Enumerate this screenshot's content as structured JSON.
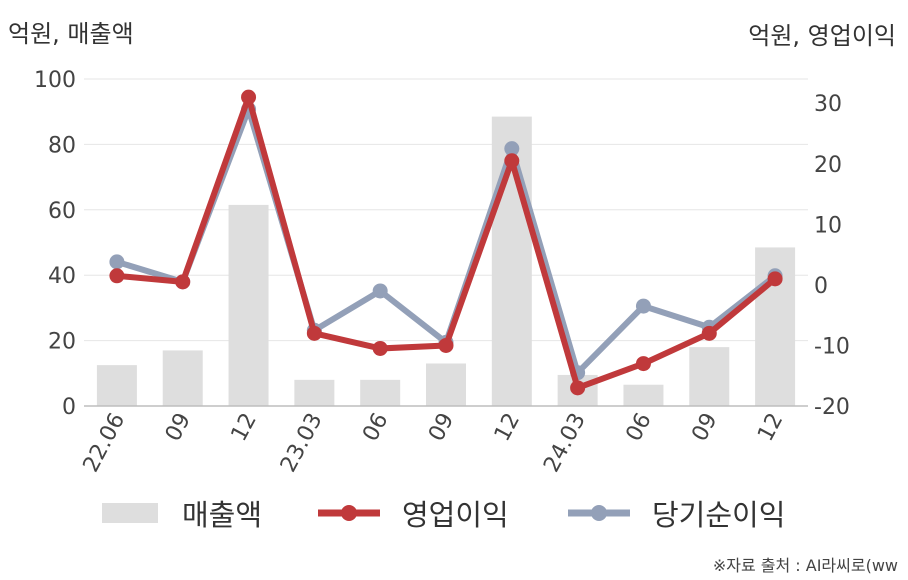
{
  "units": {
    "left": "억원, 매출액",
    "right": "억원, 영업이익"
  },
  "source": "※자료 출처 : AI라씨로(ww",
  "legend": [
    {
      "label": "매출액",
      "kind": "bar",
      "color": "#dedede"
    },
    {
      "label": "영업이익",
      "kind": "line",
      "color": "#c0393b"
    },
    {
      "label": "당기순이익",
      "kind": "line",
      "color": "#93a0b8"
    }
  ],
  "chart_data": {
    "type": "bar",
    "categories": [
      "22.06",
      "09",
      "12",
      "23.03",
      "06",
      "09",
      "12",
      "24.03",
      "06",
      "09",
      "12"
    ],
    "y_left": {
      "label": "억원, 매출액",
      "lim": [
        0,
        100
      ],
      "ticks": [
        0,
        20,
        40,
        60,
        80,
        100
      ]
    },
    "y_right": {
      "label": "억원, 영업이익",
      "lim": [
        -20,
        34
      ],
      "ticks": [
        -20,
        -10,
        0,
        10,
        20,
        30
      ]
    },
    "grid": true,
    "legend_position": "bottom",
    "series": [
      {
        "name": "매출액",
        "type": "bar",
        "axis": "left",
        "color": "#dedede",
        "values": [
          12.5,
          17,
          61.5,
          8,
          8,
          13,
          88.5,
          9.5,
          6.5,
          18,
          48.5
        ]
      },
      {
        "name": "영업이익",
        "type": "line",
        "axis": "right",
        "color": "#c0393b",
        "values": [
          1.5,
          0.5,
          31,
          -8,
          -10.5,
          -10,
          20.5,
          -17,
          -13,
          -8,
          1
        ]
      },
      {
        "name": "당기순이익",
        "type": "line",
        "axis": "right",
        "color": "#93a0b8",
        "values": [
          3.8,
          0.5,
          29,
          -7.5,
          -1,
          -9.5,
          22.5,
          -14.5,
          -3.5,
          -7,
          1.5
        ]
      }
    ]
  }
}
